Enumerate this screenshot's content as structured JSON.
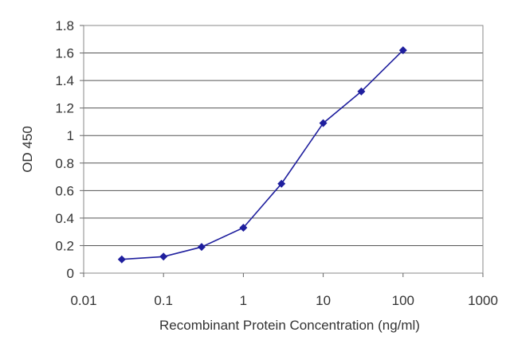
{
  "chart_data": {
    "type": "line",
    "title": "",
    "xlabel": "Recombinant Protein Concentration (ng/ml)",
    "ylabel": "OD 450",
    "x_scale": "log",
    "xlim": [
      0.01,
      1000
    ],
    "ylim": [
      0,
      1.8
    ],
    "x_ticks": [
      "0.01",
      "0.1",
      "1",
      "10",
      "100",
      "1000"
    ],
    "y_ticks": [
      "0",
      "0.2",
      "0.4",
      "0.6",
      "0.8",
      "1",
      "1.2",
      "1.4",
      "1.6",
      "1.8"
    ],
    "grid": "horizontal",
    "legend": "none",
    "series": [
      {
        "color": "#1f1f9e",
        "marker": "diamond",
        "points": [
          {
            "x": 0.03,
            "y": 0.1
          },
          {
            "x": 0.1,
            "y": 0.12
          },
          {
            "x": 0.3,
            "y": 0.19
          },
          {
            "x": 1,
            "y": 0.33
          },
          {
            "x": 3,
            "y": 0.65
          },
          {
            "x": 10,
            "y": 1.09
          },
          {
            "x": 30,
            "y": 1.32
          },
          {
            "x": 100,
            "y": 1.62
          }
        ]
      }
    ]
  }
}
